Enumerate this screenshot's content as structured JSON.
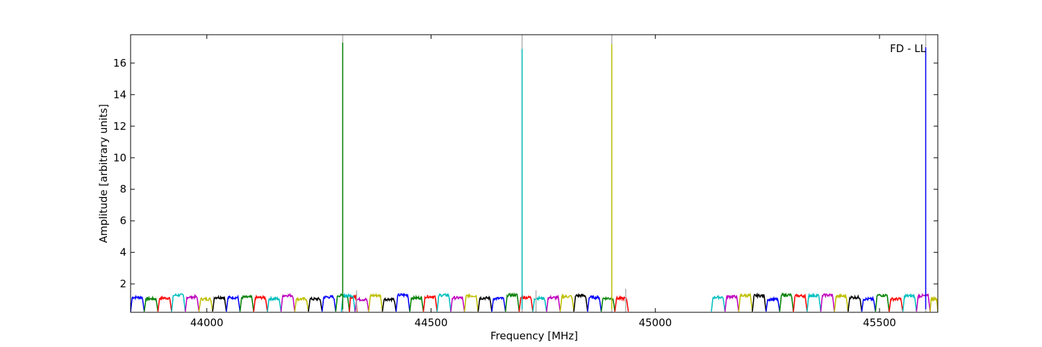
{
  "chart_data": {
    "type": "line",
    "title": "",
    "annotation": "FD - LL",
    "xlabel": "Frequency [MHz]",
    "ylabel": "Amplitude [arbitrary units]",
    "xlim": [
      43830,
      45630
    ],
    "ylim": [
      0.2,
      17.8
    ],
    "xticks": [
      44000,
      44500,
      45000,
      45500
    ],
    "yticks": [
      2,
      4,
      6,
      8,
      10,
      12,
      14,
      16
    ],
    "grid": false,
    "legend": "none",
    "palette": [
      "#0000ff",
      "#008000",
      "#ff0000",
      "#00bfbf",
      "#bf00bf",
      "#bfbf00",
      "#000000"
    ],
    "spike_color_gray": "#b0b0b0",
    "band_series": {
      "description_values": "repeating subband passband, each subband ~30 MHz wide, amplitude ~1.0-1.4 with dips to ~0.3 at edges",
      "segments": [
        {
          "x_start": 43830,
          "x_end": 44335,
          "subband_width": 30.5
        },
        {
          "x_start": 44300,
          "x_end": 44940,
          "subband_width": 30.5
        },
        {
          "x_start": 45125,
          "x_end": 45630,
          "subband_width": 30.5
        }
      ],
      "plateau_min": 1.0,
      "plateau_max": 1.4,
      "dip_min": 0.25
    },
    "spikes": [
      {
        "x": 44303,
        "y": 17.3,
        "color": "#008000"
      },
      {
        "x": 44703,
        "y": 16.9,
        "color": "#00bfbf"
      },
      {
        "x": 44903,
        "y": 17.2,
        "color": "#bfbf00"
      },
      {
        "x": 45603,
        "y": 17.0,
        "color": "#0000ff"
      }
    ],
    "gray_spikes": [
      {
        "x": 44303,
        "y": 17.8
      },
      {
        "x": 44334,
        "y": 1.6
      },
      {
        "x": 44703,
        "y": 17.8
      },
      {
        "x": 44734,
        "y": 1.6
      },
      {
        "x": 44903,
        "y": 17.8
      },
      {
        "x": 44934,
        "y": 1.7
      },
      {
        "x": 45603,
        "y": 17.8
      }
    ]
  }
}
